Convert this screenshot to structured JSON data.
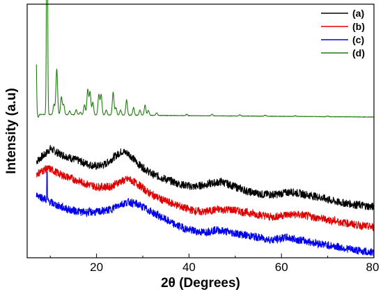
{
  "chart_data": {
    "type": "line",
    "title": "",
    "xlabel": "2θ (Degrees)",
    "ylabel": "Intensity (a.u)",
    "xlim": [
      5,
      80
    ],
    "ylim": [
      0,
      100
    ],
    "x_ticks": [
      20,
      40,
      60,
      80
    ],
    "y_ticks_labeled": false,
    "grid": false,
    "legend_position": "top-right",
    "series": [
      {
        "name": "(a)",
        "color": "#000000",
        "noise": 1.6,
        "points": [
          [
            7,
            38
          ],
          [
            9,
            41
          ],
          [
            10,
            43
          ],
          [
            12,
            41
          ],
          [
            15,
            39
          ],
          [
            18,
            37
          ],
          [
            20,
            36
          ],
          [
            22,
            37
          ],
          [
            24,
            40
          ],
          [
            25.5,
            42
          ],
          [
            27,
            41
          ],
          [
            29,
            37
          ],
          [
            32,
            33
          ],
          [
            35,
            31
          ],
          [
            38,
            29
          ],
          [
            41,
            28
          ],
          [
            44,
            29
          ],
          [
            47,
            30
          ],
          [
            50,
            28
          ],
          [
            53,
            26
          ],
          [
            56,
            25
          ],
          [
            59,
            25
          ],
          [
            62,
            26
          ],
          [
            65,
            25
          ],
          [
            68,
            24
          ],
          [
            72,
            22
          ],
          [
            76,
            21
          ],
          [
            80,
            20
          ]
        ]
      },
      {
        "name": "(b)",
        "color": "#e00000",
        "noise": 1.6,
        "points": [
          [
            7,
            33
          ],
          [
            9,
            35
          ],
          [
            10,
            35
          ],
          [
            12,
            33
          ],
          [
            15,
            31
          ],
          [
            18,
            29
          ],
          [
            20,
            28
          ],
          [
            23,
            28
          ],
          [
            25,
            30
          ],
          [
            27,
            31
          ],
          [
            29,
            29
          ],
          [
            31,
            26
          ],
          [
            34,
            23
          ],
          [
            37,
            21
          ],
          [
            40,
            19
          ],
          [
            43,
            18
          ],
          [
            46,
            19
          ],
          [
            49,
            19
          ],
          [
            52,
            18
          ],
          [
            55,
            17
          ],
          [
            58,
            16
          ],
          [
            61,
            17
          ],
          [
            64,
            17
          ],
          [
            67,
            16
          ],
          [
            70,
            15
          ],
          [
            73,
            14
          ],
          [
            76,
            13
          ],
          [
            80,
            12
          ]
        ]
      },
      {
        "name": "(c)",
        "color": "#0000ee",
        "noise": 1.6,
        "points": [
          [
            7,
            25
          ],
          [
            9,
            23
          ],
          [
            11,
            21
          ],
          [
            14,
            19
          ],
          [
            17,
            18
          ],
          [
            20,
            18
          ],
          [
            23,
            19
          ],
          [
            25,
            21
          ],
          [
            27,
            22
          ],
          [
            29,
            21
          ],
          [
            31,
            19
          ],
          [
            34,
            16
          ],
          [
            37,
            13
          ],
          [
            40,
            11
          ],
          [
            43,
            10
          ],
          [
            46,
            11
          ],
          [
            49,
            10
          ],
          [
            52,
            9
          ],
          [
            55,
            8
          ],
          [
            58,
            7
          ],
          [
            61,
            8
          ],
          [
            64,
            7
          ],
          [
            67,
            6
          ],
          [
            70,
            5
          ],
          [
            73,
            4
          ],
          [
            76,
            3
          ],
          [
            80,
            2
          ]
        ]
      },
      {
        "name": "(d)",
        "color": "#207a10",
        "noise": 0.15,
        "baseline": 56.5,
        "baseline_end": 55.5,
        "peaks": [
          [
            6.9,
            28
          ],
          [
            7.4,
            -1
          ],
          [
            9.3,
            97
          ],
          [
            10.8,
            4
          ],
          [
            11.4,
            18
          ],
          [
            12.4,
            7
          ],
          [
            12.9,
            4
          ],
          [
            14.2,
            1.5
          ],
          [
            15.6,
            2
          ],
          [
            16.5,
            1
          ],
          [
            17.4,
            4
          ],
          [
            18.1,
            10
          ],
          [
            18.6,
            9
          ],
          [
            19.2,
            5
          ],
          [
            20.5,
            8
          ],
          [
            21.0,
            8
          ],
          [
            22.1,
            2
          ],
          [
            23.6,
            9
          ],
          [
            24.2,
            3
          ],
          [
            25.2,
            2
          ],
          [
            26.5,
            6
          ],
          [
            28.0,
            3
          ],
          [
            29.4,
            2
          ],
          [
            30.5,
            4
          ],
          [
            31.2,
            2
          ],
          [
            33.0,
            1
          ],
          [
            39.5,
            0.5
          ],
          [
            45.0,
            0.6
          ],
          [
            51.0,
            0.5
          ],
          [
            56.5,
            0.4
          ],
          [
            63.0,
            0.3
          ],
          [
            70.0,
            0.3
          ]
        ]
      }
    ]
  }
}
